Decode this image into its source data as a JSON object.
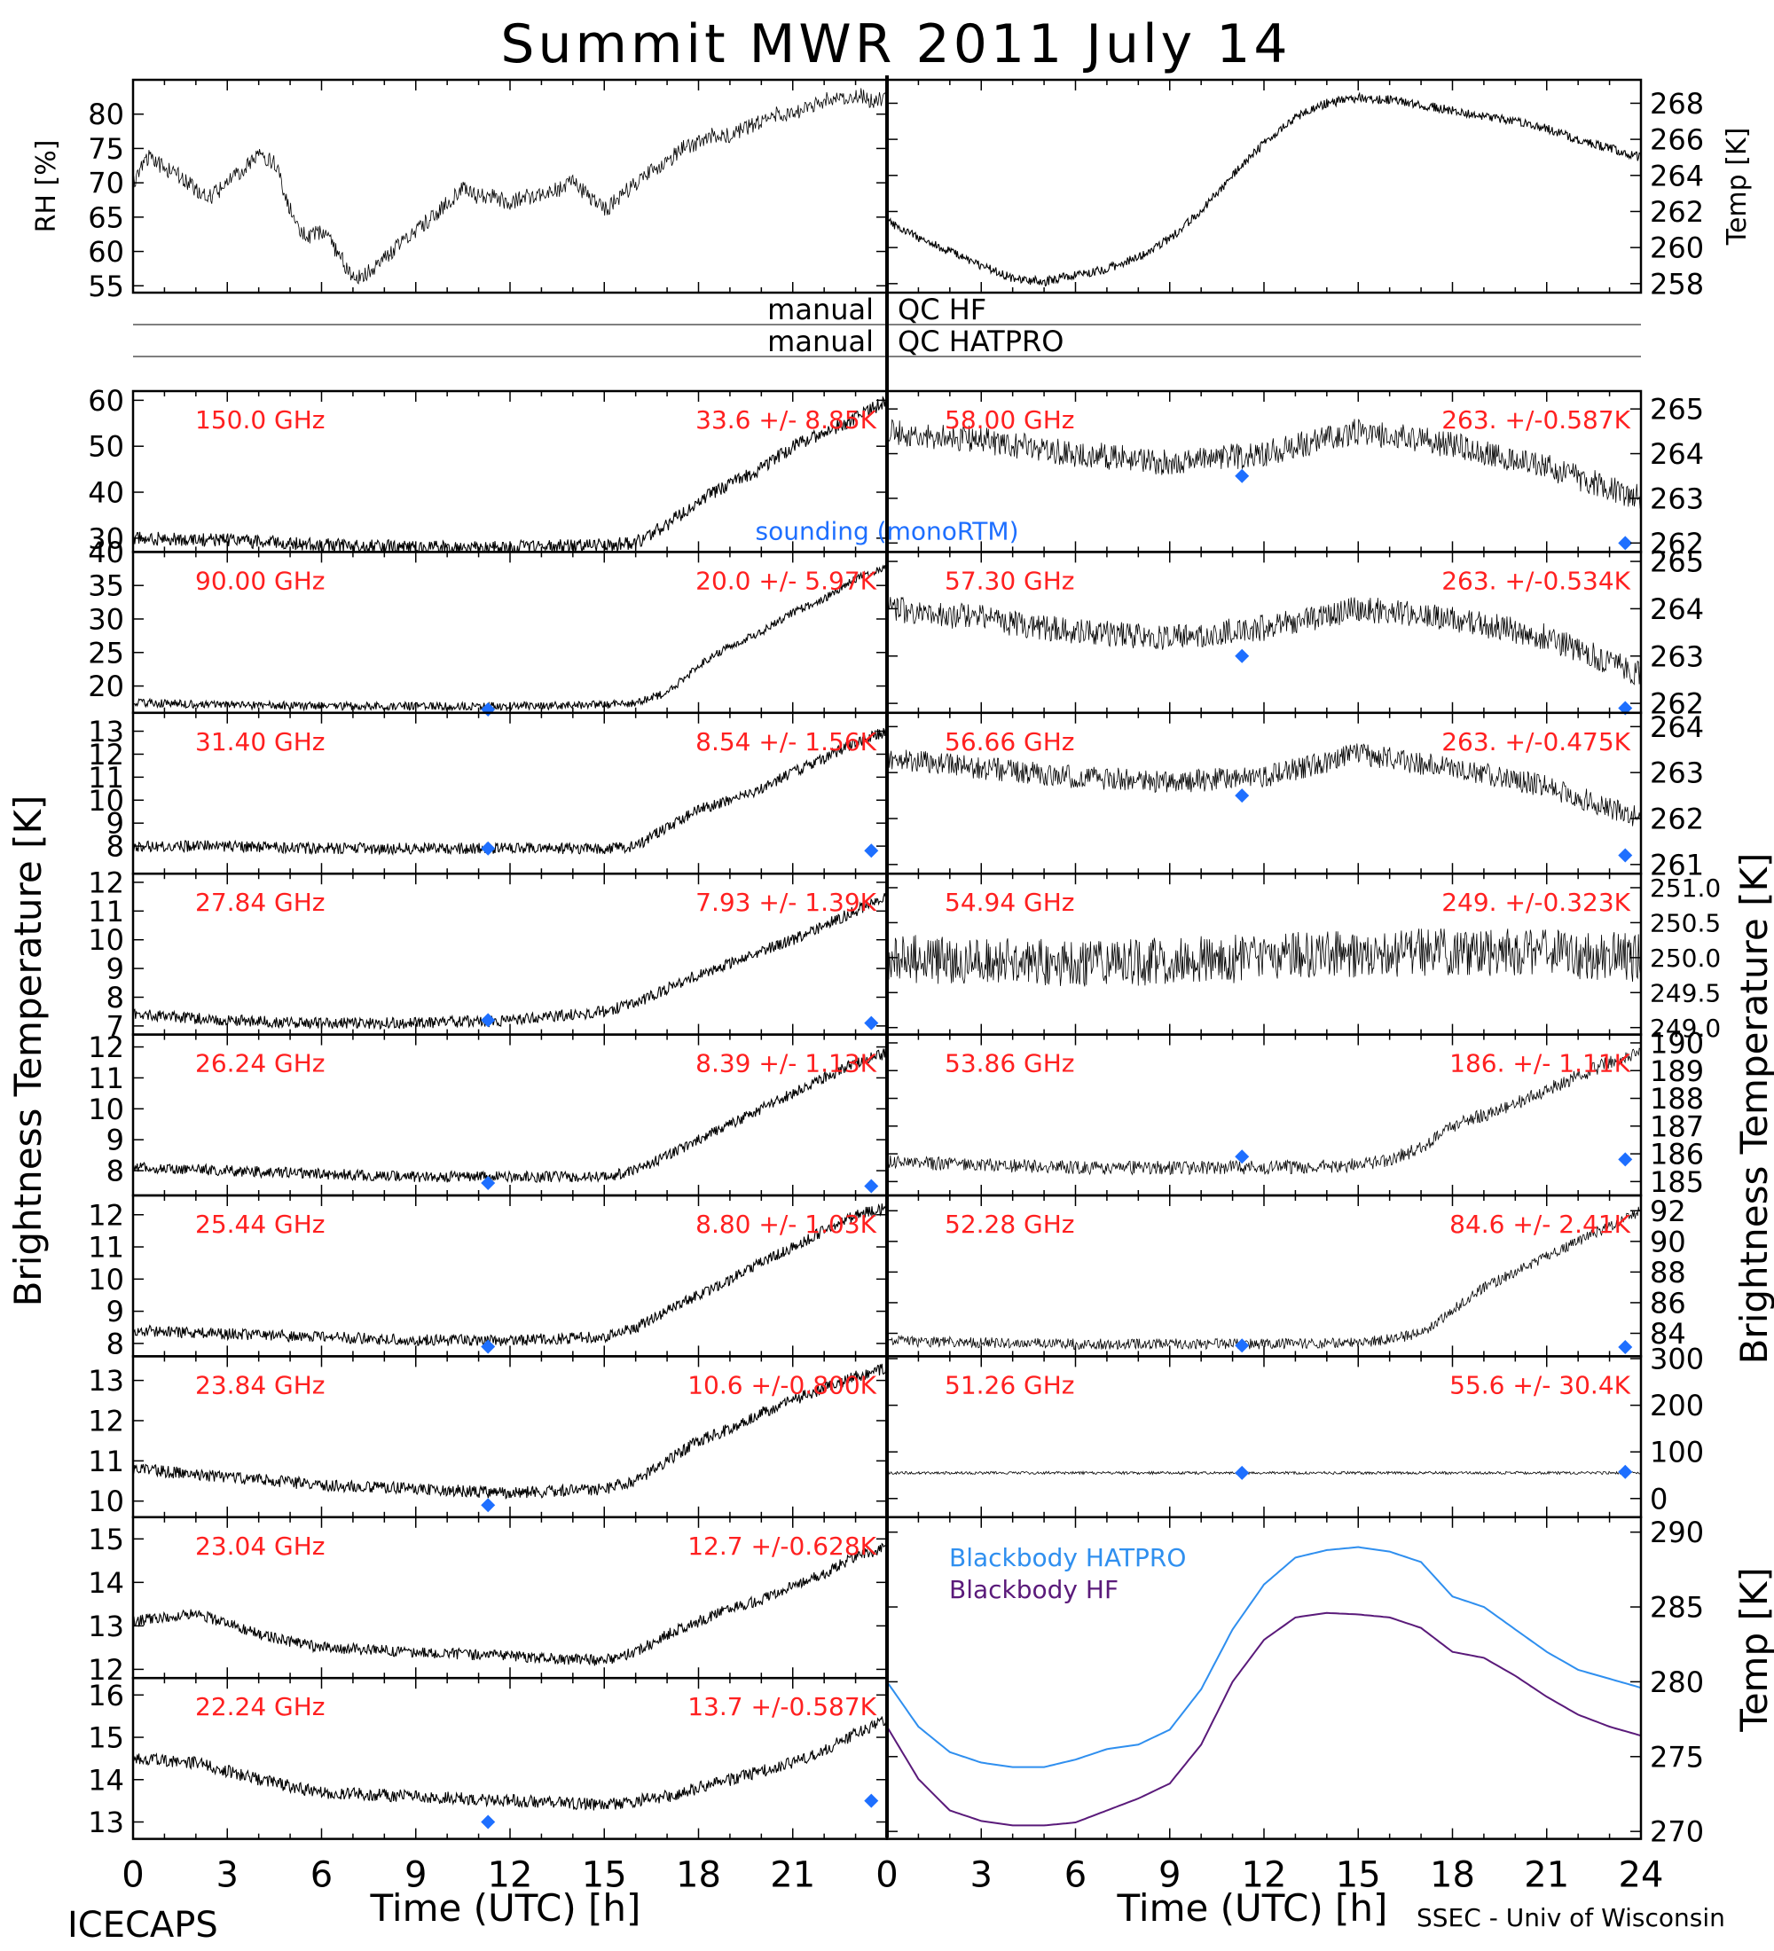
{
  "figure": {
    "title": "Summit MWR 2011 July 14",
    "left_footer": "ICECAPS",
    "right_footer": "SSEC - Univ of Wisconsin",
    "left_ylabel": "Brightness Temperature [K]",
    "right_ylabel": "Brightness Temperature [K]",
    "right_bb_ylabel": "Temp [K]",
    "xlabel": "Time (UTC) [h]",
    "qc_rows": [
      {
        "left": "manual",
        "right": "QC HF"
      },
      {
        "left": "manual",
        "right": "QC HATPRO"
      }
    ],
    "sounding_label": "sounding (monoRTM)",
    "colors": {
      "label_red": "#ff2020",
      "sounding_blue": "#1e6fff",
      "bb_hatpro": "#2f8fef",
      "bb_hf": "#5a1a7a",
      "trace": "#000000"
    }
  },
  "chart_data": [
    {
      "id": "rh",
      "type": "line",
      "panel": "top-left",
      "ylabel": "RH [%]",
      "ylim": [
        54,
        85
      ],
      "yticks": [
        55,
        60,
        65,
        70,
        75,
        80
      ],
      "xlim": [
        0,
        24
      ],
      "x": [
        0,
        0.5,
        1,
        1.5,
        2,
        2.5,
        3,
        3.5,
        4,
        4.5,
        5,
        5.5,
        6,
        6.5,
        7,
        7.5,
        8,
        8.5,
        9,
        9.5,
        10,
        10.5,
        11,
        11.5,
        12,
        12.5,
        13,
        13.5,
        14,
        14.5,
        15,
        15.5,
        16,
        16.5,
        17,
        17.5,
        18,
        18.5,
        19,
        19.5,
        20,
        20.5,
        21,
        21.5,
        22,
        22.5,
        23,
        23.5,
        24
      ],
      "y": [
        70,
        74,
        72,
        71,
        69,
        68,
        70,
        72,
        74,
        73,
        66,
        62,
        63,
        60,
        56,
        57,
        59,
        61,
        63,
        65,
        67,
        69,
        68,
        68,
        67,
        68,
        68,
        69,
        70,
        68,
        66,
        68,
        70,
        72,
        73,
        75,
        76,
        77,
        77,
        78,
        79,
        80,
        80,
        81,
        82,
        82,
        83,
        82,
        82
      ],
      "noise": 1.2
    },
    {
      "id": "temp",
      "type": "line",
      "panel": "top-right",
      "ylabel": "Temp [K]",
      "ylim": [
        257.5,
        269.3
      ],
      "yticks": [
        258,
        260,
        262,
        264,
        266,
        268
      ],
      "xlim": [
        0,
        24
      ],
      "x": [
        0,
        1,
        2,
        3,
        4,
        5,
        6,
        7,
        8,
        9,
        10,
        11,
        12,
        13,
        14,
        15,
        16,
        17,
        18,
        19,
        20,
        21,
        22,
        23,
        24
      ],
      "y": [
        261.5,
        260.5,
        259.8,
        259,
        258.3,
        258.1,
        258.5,
        258.8,
        259.5,
        260.5,
        262,
        264,
        265.8,
        267.2,
        268,
        268.3,
        268.2,
        267.9,
        267.6,
        267.3,
        267,
        266.6,
        266,
        265.5,
        265
      ],
      "noise": 0.25
    },
    {
      "id": "ch1",
      "type": "line",
      "side": "left",
      "row": 0,
      "freq_label": "150.0 GHz",
      "stat_label": "33.6 +/- 8.85K",
      "ylim": [
        27,
        62
      ],
      "yticks": [
        30,
        40,
        50,
        60
      ],
      "x": [
        0,
        3,
        6,
        9,
        12,
        15,
        16,
        17,
        18,
        19,
        20,
        21,
        22,
        23,
        24
      ],
      "y": [
        30,
        29.5,
        28.5,
        28,
        28,
        28.5,
        29,
        33,
        38,
        42,
        45,
        50,
        53,
        56,
        60
      ],
      "noise": 1.5,
      "sounding": []
    },
    {
      "id": "ch2",
      "type": "line",
      "side": "left",
      "row": 1,
      "freq_label": "90.00 GHz",
      "stat_label": "20.0 +/- 5.97K",
      "ylim": [
        16,
        40
      ],
      "yticks": [
        20,
        25,
        30,
        35,
        40
      ],
      "x": [
        0,
        3,
        6,
        9,
        12,
        15,
        16,
        17,
        18,
        19,
        20,
        21,
        22,
        23,
        24
      ],
      "y": [
        17.5,
        17.2,
        17,
        17,
        17,
        17.2,
        17.5,
        19,
        23,
        26,
        28,
        31,
        33,
        36,
        38
      ],
      "noise": 0.6,
      "sounding": [
        {
          "x": 11.3,
          "y": 16.5
        }
      ]
    },
    {
      "id": "ch3",
      "type": "line",
      "side": "left",
      "row": 2,
      "freq_label": "31.40 GHz",
      "stat_label": "8.54 +/- 1.56K",
      "ylim": [
        6.8,
        13.8
      ],
      "yticks": [
        8,
        9,
        10,
        11,
        12,
        13
      ],
      "x": [
        0,
        3,
        6,
        9,
        12,
        15,
        16,
        17,
        18,
        19,
        20,
        21,
        22,
        23,
        24
      ],
      "y": [
        8,
        8,
        7.9,
        7.9,
        7.9,
        7.9,
        8,
        8.8,
        9.6,
        10,
        10.5,
        11.2,
        11.8,
        12.5,
        13
      ],
      "noise": 0.25,
      "sounding": [
        {
          "x": 11.3,
          "y": 7.9
        },
        {
          "x": 23.5,
          "y": 7.8
        }
      ]
    },
    {
      "id": "ch4",
      "type": "line",
      "side": "left",
      "row": 3,
      "freq_label": "27.84 GHz",
      "stat_label": "7.93 +/- 1.39K",
      "ylim": [
        6.7,
        12.3
      ],
      "yticks": [
        7,
        8,
        9,
        10,
        11,
        12
      ],
      "x": [
        0,
        3,
        6,
        9,
        12,
        15,
        16,
        17,
        18,
        19,
        20,
        21,
        22,
        23,
        24
      ],
      "y": [
        7.4,
        7.2,
        7.1,
        7.1,
        7.2,
        7.5,
        7.8,
        8.3,
        8.8,
        9.2,
        9.6,
        10,
        10.5,
        11,
        11.6
      ],
      "noise": 0.2,
      "sounding": [
        {
          "x": 11.3,
          "y": 7.2
        },
        {
          "x": 23.5,
          "y": 7.1
        }
      ]
    },
    {
      "id": "ch5",
      "type": "line",
      "side": "left",
      "row": 4,
      "freq_label": "26.24 GHz",
      "stat_label": "8.39 +/- 1.13K",
      "ylim": [
        7.2,
        12.4
      ],
      "yticks": [
        8,
        9,
        10,
        11,
        12
      ],
      "x": [
        0,
        3,
        6,
        9,
        12,
        15,
        16,
        17,
        18,
        19,
        20,
        21,
        22,
        23,
        24
      ],
      "y": [
        8.1,
        8,
        7.9,
        7.8,
        7.8,
        7.8,
        8,
        8.5,
        9,
        9.5,
        10,
        10.5,
        11,
        11.5,
        11.8
      ],
      "noise": 0.18,
      "sounding": [
        {
          "x": 11.3,
          "y": 7.6
        },
        {
          "x": 23.5,
          "y": 7.5
        }
      ]
    },
    {
      "id": "ch6",
      "type": "line",
      "side": "left",
      "row": 5,
      "freq_label": "25.44 GHz",
      "stat_label": "8.80 +/- 1.03K",
      "ylim": [
        7.6,
        12.6
      ],
      "yticks": [
        8,
        9,
        10,
        11,
        12
      ],
      "x": [
        0,
        3,
        6,
        9,
        12,
        15,
        16,
        17,
        18,
        19,
        20,
        21,
        22,
        23,
        24
      ],
      "y": [
        8.4,
        8.3,
        8.2,
        8.1,
        8.1,
        8.2,
        8.5,
        9,
        9.5,
        10,
        10.5,
        11,
        11.5,
        12,
        12.2
      ],
      "noise": 0.18,
      "sounding": [
        {
          "x": 11.3,
          "y": 7.9
        }
      ]
    },
    {
      "id": "ch7",
      "type": "line",
      "side": "left",
      "row": 6,
      "freq_label": "23.84 GHz",
      "stat_label": "10.6 +/-0.800K",
      "ylim": [
        9.6,
        13.6
      ],
      "yticks": [
        10,
        11,
        12,
        13
      ],
      "x": [
        0,
        3,
        6,
        9,
        12,
        15,
        16,
        17,
        18,
        19,
        20,
        21,
        22,
        23,
        24
      ],
      "y": [
        10.8,
        10.6,
        10.4,
        10.3,
        10.2,
        10.3,
        10.5,
        11,
        11.5,
        11.8,
        12.2,
        12.5,
        12.8,
        13.1,
        13.3
      ],
      "noise": 0.15,
      "sounding": [
        {
          "x": 11.3,
          "y": 9.9
        }
      ]
    },
    {
      "id": "ch8",
      "type": "line",
      "side": "left",
      "row": 7,
      "freq_label": "23.04 GHz",
      "stat_label": "12.7 +/-0.628K",
      "ylim": [
        11.8,
        15.5
      ],
      "yticks": [
        12,
        13,
        14,
        15
      ],
      "x": [
        0,
        2,
        4,
        6,
        9,
        12,
        15,
        16,
        17,
        18,
        19,
        20,
        21,
        22,
        23,
        24
      ],
      "y": [
        13.1,
        13.3,
        12.8,
        12.5,
        12.4,
        12.3,
        12.2,
        12.4,
        12.8,
        13.1,
        13.4,
        13.6,
        13.9,
        14.2,
        14.6,
        14.8
      ],
      "noise": 0.13,
      "sounding": []
    },
    {
      "id": "ch9",
      "type": "line",
      "side": "left",
      "row": 8,
      "freq_label": "22.24 GHz",
      "stat_label": "13.7 +/-0.587K",
      "ylim": [
        12.6,
        16.4
      ],
      "yticks": [
        13,
        14,
        15,
        16
      ],
      "x": [
        0,
        2,
        4,
        6,
        9,
        12,
        15,
        16,
        17,
        18,
        19,
        20,
        21,
        22,
        23,
        24
      ],
      "y": [
        14.5,
        14.4,
        14,
        13.7,
        13.6,
        13.5,
        13.4,
        13.5,
        13.6,
        13.8,
        14,
        14.2,
        14.4,
        14.7,
        15.1,
        15.4
      ],
      "noise": 0.15,
      "sounding": [
        {
          "x": 11.3,
          "y": 13
        },
        {
          "x": 23.5,
          "y": 13.5
        }
      ]
    },
    {
      "id": "ch10",
      "type": "line",
      "side": "right",
      "row": 0,
      "freq_label": "58.00 GHz",
      "stat_label": "263. +/-0.587K",
      "ylim": [
        261.8,
        265.4
      ],
      "yticks": [
        262,
        263,
        264,
        265
      ],
      "x": [
        0,
        3,
        6,
        9,
        12,
        15,
        18,
        21,
        24
      ],
      "y": [
        264.5,
        264.3,
        264,
        263.8,
        264,
        264.5,
        264.2,
        263.7,
        263
      ],
      "noise": 0.3,
      "sounding": [
        {
          "x": 11.3,
          "y": 263.5
        },
        {
          "x": 23.5,
          "y": 262
        }
      ]
    },
    {
      "id": "ch11",
      "type": "line",
      "side": "right",
      "row": 1,
      "freq_label": "57.30 GHz",
      "stat_label": "263. +/-0.534K",
      "ylim": [
        261.8,
        265.2
      ],
      "yticks": [
        262,
        263,
        264,
        265
      ],
      "x": [
        0,
        3,
        6,
        9,
        12,
        15,
        18,
        21,
        24
      ],
      "y": [
        264,
        263.8,
        263.5,
        263.4,
        263.6,
        264,
        263.8,
        263.4,
        262.6
      ],
      "noise": 0.28,
      "sounding": [
        {
          "x": 11.3,
          "y": 263
        },
        {
          "x": 23.5,
          "y": 261.9
        }
      ]
    },
    {
      "id": "ch12",
      "type": "line",
      "side": "right",
      "row": 2,
      "freq_label": "56.66 GHz",
      "stat_label": "263. +/-0.475K",
      "ylim": [
        260.8,
        264.3
      ],
      "yticks": [
        261,
        262,
        263,
        264
      ],
      "x": [
        0,
        3,
        6,
        9,
        12,
        15,
        18,
        21,
        24
      ],
      "y": [
        263.3,
        263.1,
        262.9,
        262.8,
        262.9,
        263.4,
        263.1,
        262.7,
        262
      ],
      "noise": 0.25,
      "sounding": [
        {
          "x": 11.3,
          "y": 262.5
        },
        {
          "x": 23.5,
          "y": 261.2
        }
      ]
    },
    {
      "id": "ch13",
      "type": "line",
      "side": "right",
      "row": 3,
      "freq_label": "54.94 GHz",
      "stat_label": "249. +/-0.323K",
      "ylim": [
        248.9,
        251.2
      ],
      "yticks": [
        249.0,
        249.5,
        250.0,
        250.5,
        251.0
      ],
      "ytick_format": "0.0",
      "x": [
        0,
        6,
        12,
        18,
        24
      ],
      "y": [
        250,
        249.9,
        250,
        250.1,
        250
      ],
      "noise": 0.35,
      "sounding": []
    },
    {
      "id": "ch14",
      "type": "line",
      "side": "right",
      "row": 4,
      "freq_label": "53.86 GHz",
      "stat_label": "186. +/- 1.11K",
      "ylim": [
        184.5,
        190.3
      ],
      "yticks": [
        185,
        186,
        187,
        188,
        189,
        190
      ],
      "x": [
        0,
        3,
        6,
        9,
        12,
        15,
        16,
        17,
        18,
        19,
        20,
        21,
        22,
        23,
        24
      ],
      "y": [
        185.7,
        185.6,
        185.5,
        185.5,
        185.5,
        185.6,
        185.8,
        186.2,
        187,
        187.4,
        187.8,
        188.3,
        188.8,
        189.3,
        189.6
      ],
      "noise": 0.25,
      "sounding": [
        {
          "x": 11.3,
          "y": 185.9
        },
        {
          "x": 23.5,
          "y": 185.8
        }
      ]
    },
    {
      "id": "ch15",
      "type": "line",
      "side": "right",
      "row": 5,
      "freq_label": "52.28 GHz",
      "stat_label": "84.6 +/- 2.41K",
      "ylim": [
        82.5,
        93
      ],
      "yticks": [
        84,
        86,
        88,
        90,
        92
      ],
      "x": [
        0,
        3,
        6,
        9,
        12,
        15,
        16,
        17,
        18,
        19,
        20,
        21,
        22,
        23,
        24
      ],
      "y": [
        83.5,
        83.4,
        83.3,
        83.3,
        83.3,
        83.4,
        83.6,
        84,
        85.5,
        87,
        88,
        89,
        90,
        91,
        92
      ],
      "noise": 0.35,
      "sounding": [
        {
          "x": 11.3,
          "y": 83.2
        },
        {
          "x": 23.5,
          "y": 83.1
        }
      ]
    },
    {
      "id": "ch16",
      "type": "line",
      "side": "right",
      "row": 6,
      "freq_label": "51.26 GHz",
      "stat_label": "55.6 +/- 30.4K",
      "ylim": [
        -40,
        305
      ],
      "yticks": [
        0,
        100,
        200,
        300
      ],
      "x": [
        0,
        6,
        12,
        18,
        24
      ],
      "y": [
        55,
        55,
        55,
        55,
        55
      ],
      "noise": 3,
      "sounding": [
        {
          "x": 11.3,
          "y": 55
        },
        {
          "x": 23.5,
          "y": 57
        }
      ]
    },
    {
      "id": "bb",
      "type": "line",
      "side": "right",
      "rows": [
        7,
        8
      ],
      "ylabel": "Temp [K]",
      "ylim": [
        269.5,
        291
      ],
      "yticks": [
        270,
        275,
        280,
        285,
        290
      ],
      "x": [
        0,
        1,
        2,
        3,
        4,
        5,
        6,
        7,
        8,
        9,
        10,
        11,
        12,
        13,
        14,
        15,
        16,
        17,
        18,
        19,
        20,
        21,
        22,
        23,
        24
      ],
      "series": [
        {
          "name": "Blackbody HATPRO",
          "color": "#2f8fef",
          "y": [
            280,
            277,
            275.3,
            274.6,
            274.3,
            274.3,
            274.8,
            275.5,
            275.8,
            276.8,
            279.5,
            283.5,
            286.5,
            288.3,
            288.8,
            289,
            288.7,
            288,
            285.7,
            285,
            283.5,
            282,
            280.8,
            280.2,
            279.6
          ]
        },
        {
          "name": "Blackbody HF",
          "color": "#5a1a7a",
          "y": [
            277,
            273.5,
            271.4,
            270.7,
            270.4,
            270.4,
            270.6,
            271.4,
            272.2,
            273.2,
            275.8,
            280,
            282.8,
            284.3,
            284.6,
            284.5,
            284.3,
            283.6,
            282,
            281.6,
            280.4,
            279,
            277.8,
            277,
            276.4
          ]
        }
      ]
    }
  ]
}
